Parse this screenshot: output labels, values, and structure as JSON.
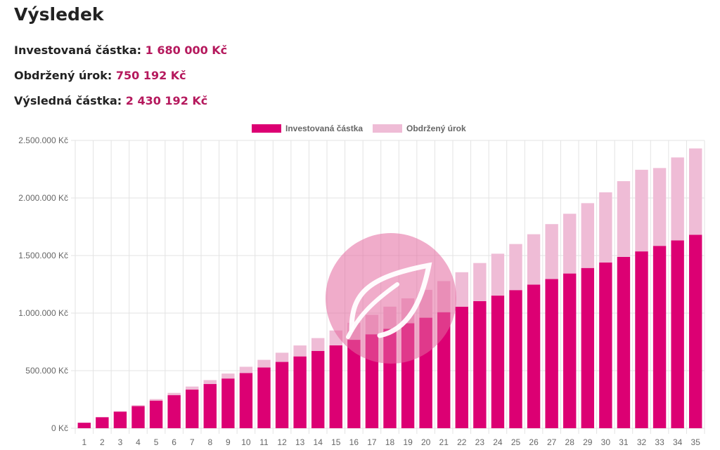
{
  "header": {
    "title": "Výsledek"
  },
  "stats": [
    {
      "label": "Investovaná částka:",
      "value": "1 680 000 Kč"
    },
    {
      "label": "Obdržený úrok:",
      "value": "750 192 Kč"
    },
    {
      "label": "Výsledná částka:",
      "value": "2 430 192 Kč"
    }
  ],
  "colors": {
    "invested": "#dc0073",
    "interest": "#efbcd6",
    "value_text": "#b5195d"
  },
  "chart_data": {
    "type": "bar",
    "stacked": true,
    "title": "",
    "xlabel": "",
    "ylabel": "",
    "ylim": [
      0,
      2500000
    ],
    "yticks": [
      0,
      500000,
      1000000,
      1500000,
      2000000,
      2500000
    ],
    "ytick_labels": [
      "0 Kč",
      "500.000 Kč",
      "1.000.000 Kč",
      "1.500.000 Kč",
      "2.000.000 Kč",
      "2.500.000 Kč"
    ],
    "legend_position": "top",
    "grid": true,
    "categories": [
      "1",
      "2",
      "3",
      "4",
      "5",
      "6",
      "7",
      "8",
      "9",
      "10",
      "11",
      "12",
      "13",
      "14",
      "15",
      "16",
      "17",
      "18",
      "19",
      "20",
      "21",
      "22",
      "23",
      "24",
      "25",
      "26",
      "27",
      "28",
      "29",
      "30",
      "31",
      "32",
      "33",
      "34",
      "35"
    ],
    "series": [
      {
        "name": "Investovaná částka",
        "color": "#dc0073",
        "values": [
          48000,
          96000,
          144000,
          192000,
          240000,
          288000,
          336000,
          384000,
          432000,
          480000,
          528000,
          576000,
          624000,
          672000,
          720000,
          768000,
          816000,
          864000,
          912000,
          960000,
          1008000,
          1056000,
          1104000,
          1152000,
          1200000,
          1248000,
          1296000,
          1344000,
          1392000,
          1440000,
          1488000,
          1536000,
          1584000,
          1632000,
          1680000
        ]
      },
      {
        "name": "Obdržený úrok",
        "color": "#efbcd6",
        "values": [
          500,
          2000,
          4500,
          8000,
          13000,
          19000,
          26000,
          34000,
          43000,
          54000,
          66000,
          80000,
          95000,
          111000,
          129000,
          148000,
          169000,
          192000,
          216000,
          242000,
          270000,
          299000,
          331000,
          364000,
          400000,
          437000,
          477000,
          519000,
          563000,
          609000,
          658000,
          709000,
          676000,
          720000,
          750192
        ]
      }
    ]
  },
  "watermark": {
    "icon": "leaf-icon"
  }
}
